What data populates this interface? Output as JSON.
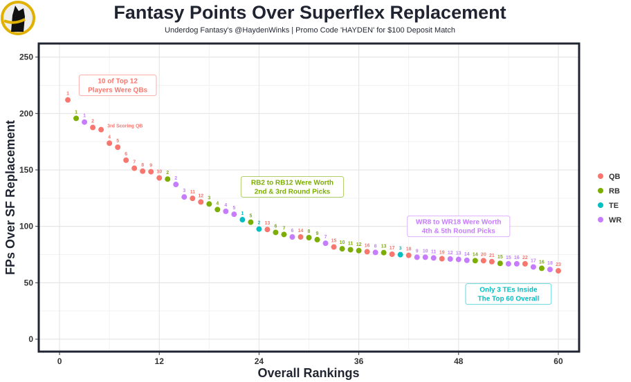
{
  "chart_data": {
    "type": "scatter",
    "title": "Fantasy Points Over Superflex Replacement",
    "subtitle": "Underdog Fantasy's @HaydenWinks | Promo Code 'HAYDEN' for $100 Deposit Match",
    "xlabel": "Overall Rankings",
    "ylabel": "FPs Over SF Replacement",
    "xlim": [
      -2.5,
      62.5
    ],
    "ylim": [
      -11,
      262
    ],
    "xticks": [
      0,
      12,
      24,
      36,
      48,
      60
    ],
    "yticks": [
      0,
      50,
      100,
      150,
      200,
      250
    ],
    "grid": true,
    "legend_position": "right",
    "colors": {
      "QB": "#F8766D",
      "RB": "#7CAE00",
      "TE": "#00BFC4",
      "WR": "#C77CFF"
    },
    "legend": [
      "QB",
      "RB",
      "TE",
      "WR"
    ],
    "points": [
      {
        "x": 1,
        "y": 212.0,
        "pos": "QB",
        "label": "1"
      },
      {
        "x": 2,
        "y": 195.7,
        "pos": "RB",
        "label": "1"
      },
      {
        "x": 3,
        "y": 192.4,
        "pos": "WR",
        "label": "1"
      },
      {
        "x": 4,
        "y": 187.6,
        "pos": "QB",
        "label": "2"
      },
      {
        "x": 5,
        "y": 185.7,
        "pos": "QB",
        "label": "3rd Scoring QB"
      },
      {
        "x": 6,
        "y": 173.7,
        "pos": "QB",
        "label": "4"
      },
      {
        "x": 7,
        "y": 170.1,
        "pos": "QB",
        "label": "5"
      },
      {
        "x": 8,
        "y": 158.6,
        "pos": "QB",
        "label": "6"
      },
      {
        "x": 9,
        "y": 151.5,
        "pos": "QB",
        "label": "7"
      },
      {
        "x": 10,
        "y": 148.9,
        "pos": "QB",
        "label": "8"
      },
      {
        "x": 11,
        "y": 148.4,
        "pos": "QB",
        "label": "9"
      },
      {
        "x": 12,
        "y": 142.9,
        "pos": "QB",
        "label": "10"
      },
      {
        "x": 13,
        "y": 141.9,
        "pos": "RB",
        "label": "2"
      },
      {
        "x": 14,
        "y": 137.1,
        "pos": "WR",
        "label": "2"
      },
      {
        "x": 15,
        "y": 126.0,
        "pos": "WR",
        "label": "3"
      },
      {
        "x": 16,
        "y": 124.8,
        "pos": "QB",
        "label": "11"
      },
      {
        "x": 17,
        "y": 121.6,
        "pos": "QB",
        "label": "12"
      },
      {
        "x": 18,
        "y": 119.8,
        "pos": "RB",
        "label": "3"
      },
      {
        "x": 19,
        "y": 114.9,
        "pos": "RB",
        "label": "4"
      },
      {
        "x": 20,
        "y": 113.3,
        "pos": "WR",
        "label": "4"
      },
      {
        "x": 21,
        "y": 110.7,
        "pos": "WR",
        "label": "5"
      },
      {
        "x": 22,
        "y": 105.9,
        "pos": "TE",
        "label": "1"
      },
      {
        "x": 23,
        "y": 103.7,
        "pos": "RB",
        "label": "5"
      },
      {
        "x": 24,
        "y": 97.6,
        "pos": "TE",
        "label": "2"
      },
      {
        "x": 25,
        "y": 97.2,
        "pos": "QB",
        "label": "13"
      },
      {
        "x": 26,
        "y": 94.6,
        "pos": "RB",
        "label": "6"
      },
      {
        "x": 27,
        "y": 92.8,
        "pos": "RB",
        "label": "7"
      },
      {
        "x": 28,
        "y": 90.6,
        "pos": "WR",
        "label": "6"
      },
      {
        "x": 29,
        "y": 90.6,
        "pos": "QB",
        "label": "14"
      },
      {
        "x": 30,
        "y": 90.0,
        "pos": "RB",
        "label": "8"
      },
      {
        "x": 31,
        "y": 88.2,
        "pos": "RB",
        "label": "9"
      },
      {
        "x": 32,
        "y": 85.0,
        "pos": "WR",
        "label": "7"
      },
      {
        "x": 33,
        "y": 81.7,
        "pos": "QB",
        "label": "15"
      },
      {
        "x": 34,
        "y": 80.1,
        "pos": "RB",
        "label": "10"
      },
      {
        "x": 35,
        "y": 79.3,
        "pos": "RB",
        "label": "11"
      },
      {
        "x": 36,
        "y": 78.5,
        "pos": "RB",
        "label": "12"
      },
      {
        "x": 37,
        "y": 77.5,
        "pos": "QB",
        "label": "16"
      },
      {
        "x": 38,
        "y": 76.9,
        "pos": "WR",
        "label": "8"
      },
      {
        "x": 39,
        "y": 76.7,
        "pos": "RB",
        "label": "13"
      },
      {
        "x": 40,
        "y": 75.3,
        "pos": "QB",
        "label": "17"
      },
      {
        "x": 41,
        "y": 74.9,
        "pos": "TE",
        "label": "3"
      },
      {
        "x": 42,
        "y": 74.3,
        "pos": "QB",
        "label": "18"
      },
      {
        "x": 43,
        "y": 72.6,
        "pos": "WR",
        "label": "9"
      },
      {
        "x": 44,
        "y": 72.6,
        "pos": "WR",
        "label": "10"
      },
      {
        "x": 45,
        "y": 72.0,
        "pos": "WR",
        "label": "11"
      },
      {
        "x": 46,
        "y": 71.3,
        "pos": "QB",
        "label": "19"
      },
      {
        "x": 47,
        "y": 71.1,
        "pos": "WR",
        "label": "12"
      },
      {
        "x": 48,
        "y": 70.7,
        "pos": "WR",
        "label": "13"
      },
      {
        "x": 49,
        "y": 69.9,
        "pos": "WR",
        "label": "14"
      },
      {
        "x": 50,
        "y": 69.6,
        "pos": "RB",
        "label": "14"
      },
      {
        "x": 51,
        "y": 69.6,
        "pos": "QB",
        "label": "20"
      },
      {
        "x": 52,
        "y": 68.7,
        "pos": "QB",
        "label": "21"
      },
      {
        "x": 53,
        "y": 67.2,
        "pos": "RB",
        "label": "15"
      },
      {
        "x": 54,
        "y": 66.8,
        "pos": "WR",
        "label": "15"
      },
      {
        "x": 55,
        "y": 66.8,
        "pos": "WR",
        "label": "16"
      },
      {
        "x": 56,
        "y": 66.8,
        "pos": "QB",
        "label": "22"
      },
      {
        "x": 57,
        "y": 64.0,
        "pos": "WR",
        "label": "17"
      },
      {
        "x": 58,
        "y": 62.8,
        "pos": "RB",
        "label": "16"
      },
      {
        "x": 59,
        "y": 61.8,
        "pos": "WR",
        "label": "18"
      },
      {
        "x": 60,
        "y": 60.6,
        "pos": "QB",
        "label": "23"
      }
    ],
    "annotations": [
      {
        "lines": [
          "10 of Top 12",
          "Players Were QBs"
        ],
        "x": 7,
        "y": 225,
        "color": "#F8766D"
      },
      {
        "lines": [
          "RB2 to RB12 Were Worth",
          "2nd & 3rd Round Picks"
        ],
        "x": 28,
        "y": 135,
        "color": "#7CAE00"
      },
      {
        "lines": [
          "WR8 to WR18 Were Worth",
          "4th & 5th Round Picks"
        ],
        "x": 48,
        "y": 100,
        "color": "#C77CFF"
      },
      {
        "lines": [
          "Only 3 TEs Inside",
          "The Top 60 Overall"
        ],
        "x": 54,
        "y": 40,
        "color": "#00BFC4"
      }
    ]
  }
}
